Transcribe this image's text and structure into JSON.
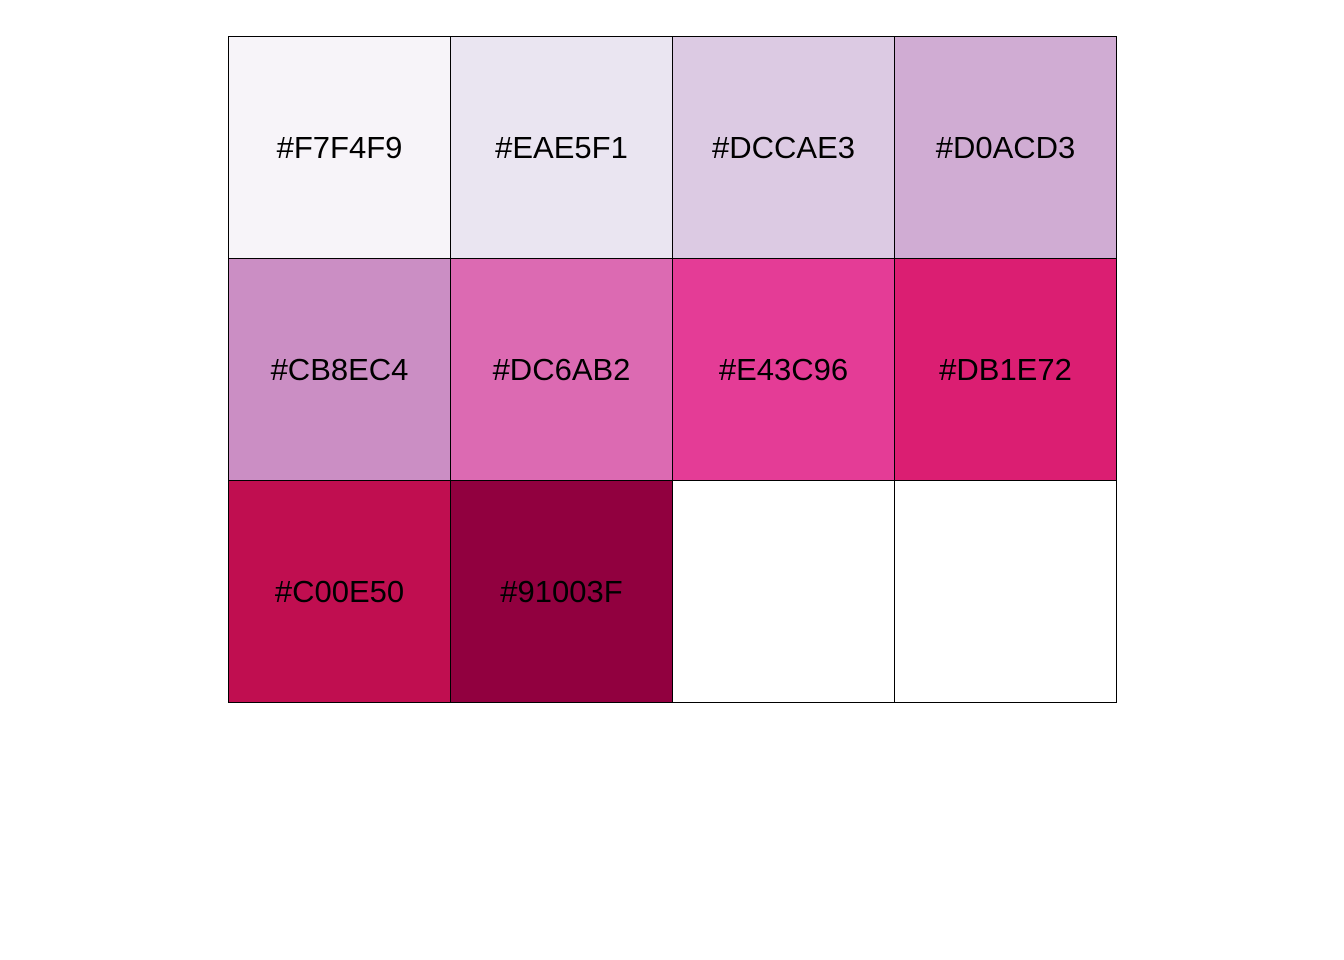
{
  "chart_data": {
    "type": "table",
    "rows": 3,
    "columns": 4,
    "cells": [
      {
        "label": "#F7F4F9",
        "color": "#F7F4F9"
      },
      {
        "label": "#EAE5F1",
        "color": "#EAE5F1"
      },
      {
        "label": "#DCCAE3",
        "color": "#DCCAE3"
      },
      {
        "label": "#D0ACD3",
        "color": "#D0ACD3"
      },
      {
        "label": "#CB8EC4",
        "color": "#CB8EC4"
      },
      {
        "label": "#DC6AB2",
        "color": "#DC6AB2"
      },
      {
        "label": "#E43C96",
        "color": "#E43C96"
      },
      {
        "label": "#DB1E72",
        "color": "#DB1E72"
      },
      {
        "label": "#C00E50",
        "color": "#C00E50"
      },
      {
        "label": "#91003F",
        "color": "#91003F"
      },
      {
        "label": "",
        "color": "#FFFFFF"
      },
      {
        "label": "",
        "color": "#FFFFFF"
      }
    ],
    "border_color": "#000000",
    "label_color": "#000000"
  }
}
